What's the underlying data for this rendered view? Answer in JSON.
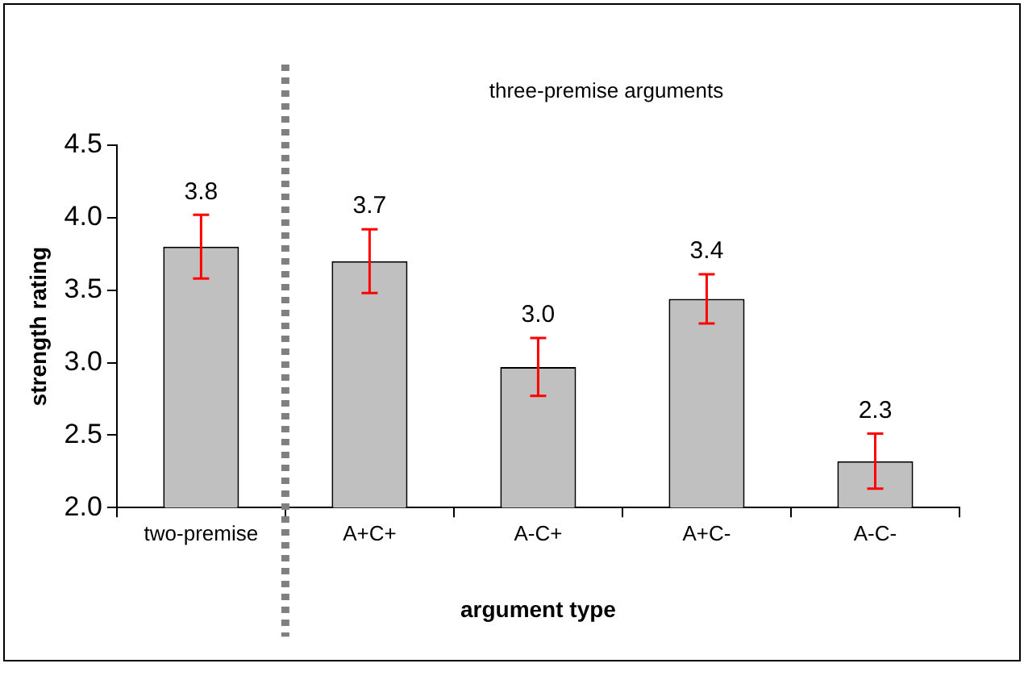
{
  "chart_data": {
    "type": "bar",
    "xlabel": "argument type",
    "ylabel": "strength rating",
    "categories": [
      "two-premise",
      "A+C+",
      "A-C+",
      "A+C-",
      "A-C-"
    ],
    "values": [
      3.8,
      3.7,
      2.97,
      3.44,
      2.32
    ],
    "value_labels": [
      "3.8",
      "3.7",
      "3.0",
      "3.4",
      "2.3"
    ],
    "errors": [
      0.22,
      0.22,
      0.2,
      0.17,
      0.19
    ],
    "color": "#c0c0c0",
    "ylim": [
      2.0,
      4.5
    ],
    "yticks": [
      {
        "value": 2,
        "label": "2.0"
      },
      {
        "value": 2.5,
        "label": "2.5"
      },
      {
        "value": 3,
        "label": "3.0"
      },
      {
        "value": 3.5,
        "label": "3.5"
      },
      {
        "value": 4,
        "label": "4.0"
      },
      {
        "value": 4.5,
        "label": "4.5"
      }
    ],
    "grid": false,
    "legend": false,
    "annotations": [
      "three-premise arguments"
    ]
  }
}
